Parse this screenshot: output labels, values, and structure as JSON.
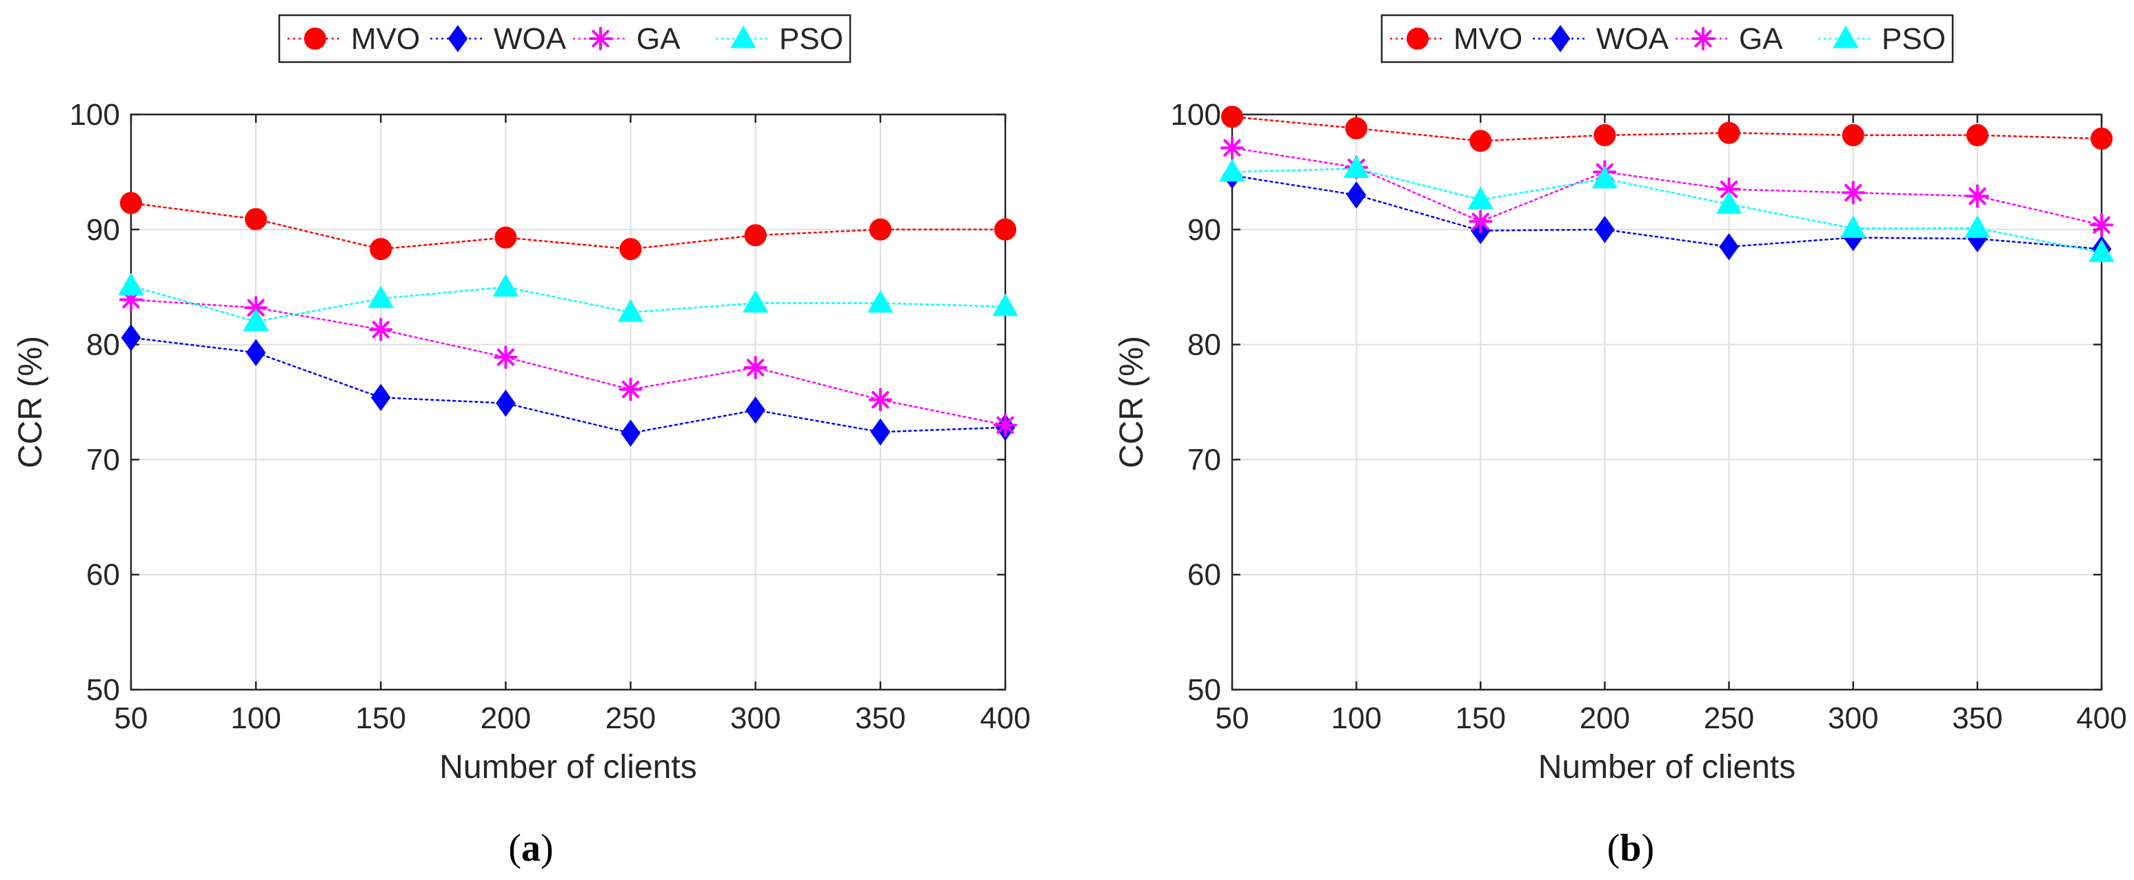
{
  "chart_data": [
    {
      "type": "line",
      "panel": "a",
      "caption": {
        "open": "(",
        "letter": "a",
        "close": ")"
      },
      "xlabel": "Number of clients",
      "ylabel": "CCR (%)",
      "x": [
        50,
        100,
        150,
        200,
        250,
        300,
        350,
        400
      ],
      "x_ticks": [
        "50",
        "100",
        "150",
        "200",
        "250",
        "300",
        "350",
        "400"
      ],
      "ylim": [
        50,
        100
      ],
      "xlim": [
        50,
        400
      ],
      "y_ticks": [
        "50",
        "60",
        "70",
        "80",
        "90",
        "100"
      ],
      "grid": true,
      "legend_position": "top-center, outside, horizontal",
      "series": [
        {
          "name": "MVO",
          "color": "#ff0000",
          "marker": "circle",
          "values": [
            92.3,
            90.9,
            88.3,
            89.3,
            88.3,
            89.5,
            90.0,
            90.0
          ]
        },
        {
          "name": "WOA",
          "color": "#0000ff",
          "marker": "diamond",
          "values": [
            80.6,
            79.3,
            75.4,
            74.9,
            72.3,
            74.3,
            72.4,
            72.8
          ]
        },
        {
          "name": "GA",
          "color": "#ff00ff",
          "marker": "asterisk",
          "values": [
            83.9,
            83.2,
            81.3,
            78.9,
            76.1,
            78.0,
            75.2,
            73.0
          ]
        },
        {
          "name": "PSO",
          "color": "#00ffff",
          "marker": "triangle",
          "values": [
            85.1,
            82.0,
            84.0,
            85.0,
            82.8,
            83.6,
            83.6,
            83.3
          ]
        }
      ]
    },
    {
      "type": "line",
      "panel": "b",
      "caption": {
        "open": "(",
        "letter": "b",
        "close": ")"
      },
      "xlabel": "Number of clients",
      "ylabel": "CCR (%)",
      "x": [
        50,
        100,
        150,
        200,
        250,
        300,
        350,
        400
      ],
      "x_ticks": [
        "50",
        "100",
        "150",
        "200",
        "250",
        "300",
        "350",
        "400"
      ],
      "ylim": [
        50,
        100
      ],
      "xlim": [
        50,
        400
      ],
      "y_ticks": [
        "50",
        "60",
        "70",
        "80",
        "90",
        "100"
      ],
      "grid": true,
      "legend_position": "top-center, outside, horizontal",
      "series": [
        {
          "name": "MVO",
          "color": "#ff0000",
          "marker": "circle",
          "values": [
            99.8,
            98.8,
            97.7,
            98.2,
            98.4,
            98.2,
            98.2,
            97.9
          ]
        },
        {
          "name": "WOA",
          "color": "#0000ff",
          "marker": "diamond",
          "values": [
            94.7,
            93.0,
            89.9,
            90.0,
            88.5,
            89.3,
            89.2,
            88.3
          ]
        },
        {
          "name": "GA",
          "color": "#ff00ff",
          "marker": "asterisk",
          "values": [
            97.1,
            95.4,
            90.7,
            95.0,
            93.5,
            93.2,
            92.9,
            90.4
          ]
        },
        {
          "name": "PSO",
          "color": "#00ffff",
          "marker": "triangle",
          "values": [
            95.0,
            95.3,
            92.6,
            94.4,
            92.2,
            90.1,
            90.1,
            88.0
          ]
        }
      ]
    }
  ]
}
